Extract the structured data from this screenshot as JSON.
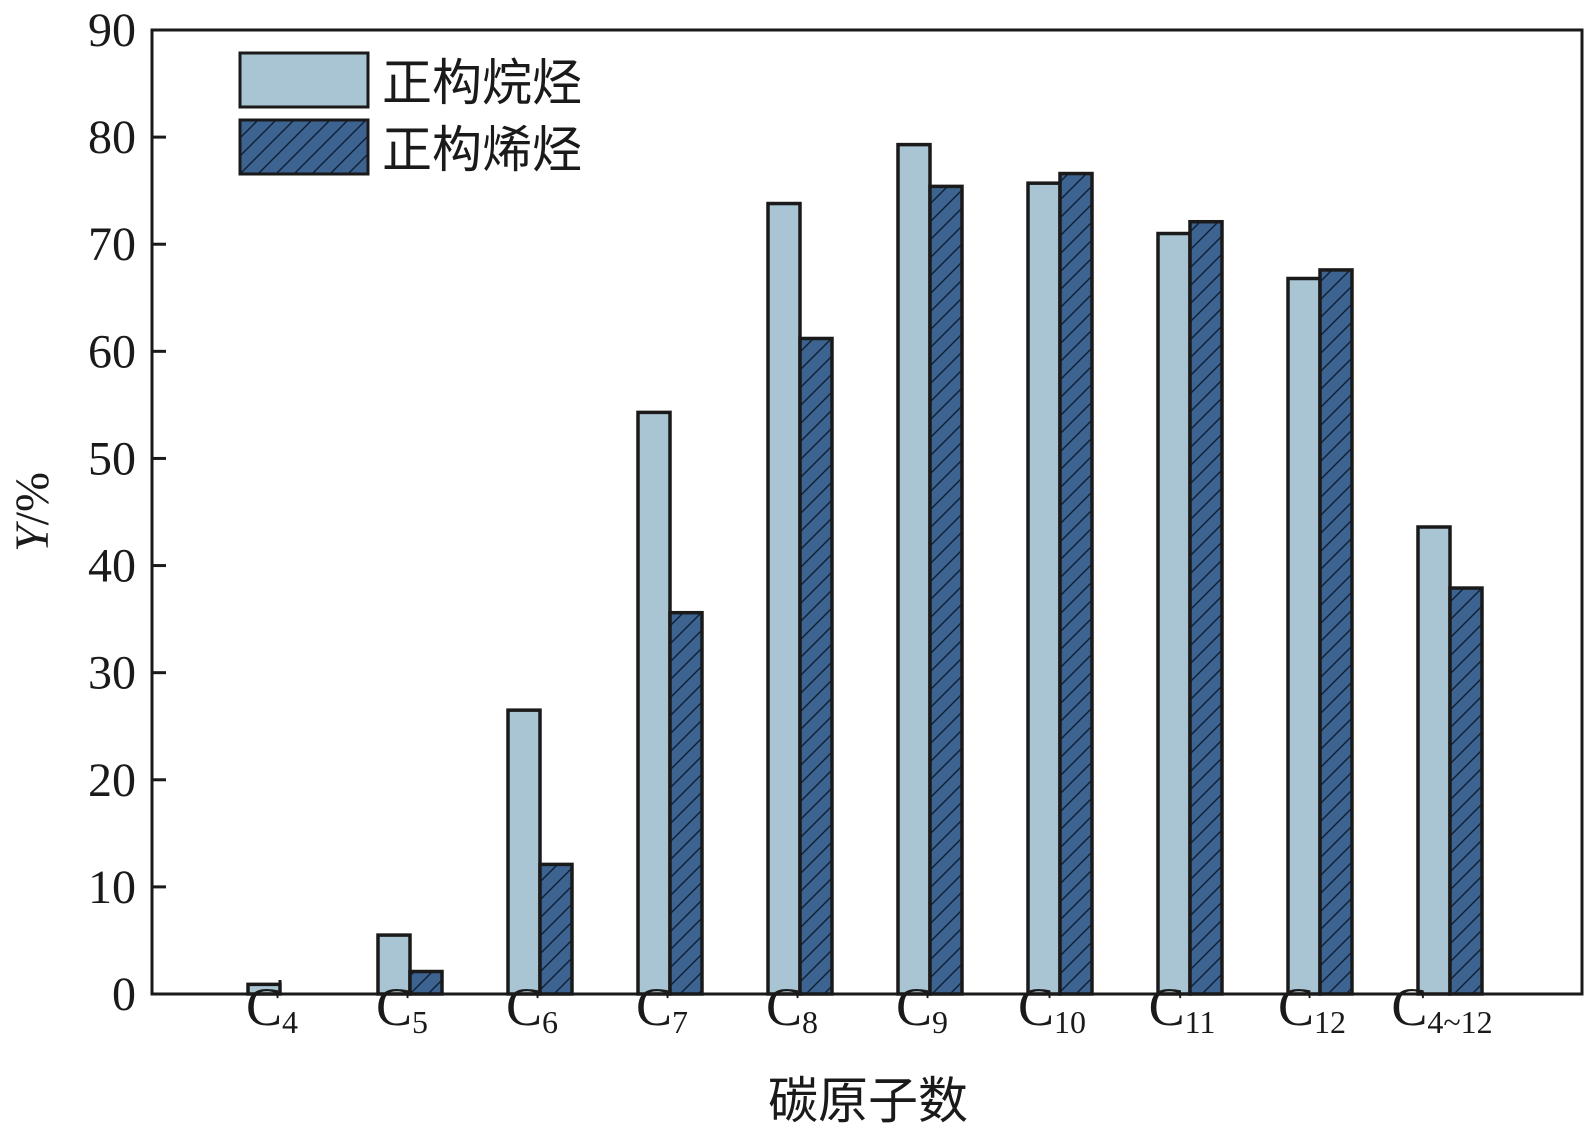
{
  "chart_data": {
    "type": "bar",
    "title": "",
    "xlabel": "碳原子数",
    "ylabel": {
      "italic": "Y",
      "rest": "/%"
    },
    "ylim": [
      0,
      90
    ],
    "yticks": [
      "0",
      "10",
      "20",
      "30",
      "40",
      "50",
      "60",
      "70",
      "80",
      "90"
    ],
    "categories": [
      {
        "base": "C",
        "sub": "4"
      },
      {
        "base": "C",
        "sub": "5"
      },
      {
        "base": "C",
        "sub": "6"
      },
      {
        "base": "C",
        "sub": "7"
      },
      {
        "base": "C",
        "sub": "8"
      },
      {
        "base": "C",
        "sub": "9"
      },
      {
        "base": "C",
        "sub": "10"
      },
      {
        "base": "C",
        "sub": "11"
      },
      {
        "base": "C",
        "sub": "12"
      },
      {
        "base": "C",
        "sub": "4~12"
      }
    ],
    "series": [
      {
        "name": "正构烷烃",
        "color": "#a9c4d2",
        "hatch": false,
        "values": [
          0.9,
          5.5,
          26.5,
          54.3,
          73.8,
          79.3,
          75.7,
          71.0,
          66.8,
          43.6
        ]
      },
      {
        "name": "正构烯烃",
        "color": "#3d6390",
        "hatch": true,
        "values": [
          0.0,
          2.1,
          12.1,
          35.6,
          61.2,
          75.4,
          76.6,
          72.1,
          67.6,
          37.9
        ]
      }
    ],
    "legend_position": "top-left",
    "grid": false
  }
}
